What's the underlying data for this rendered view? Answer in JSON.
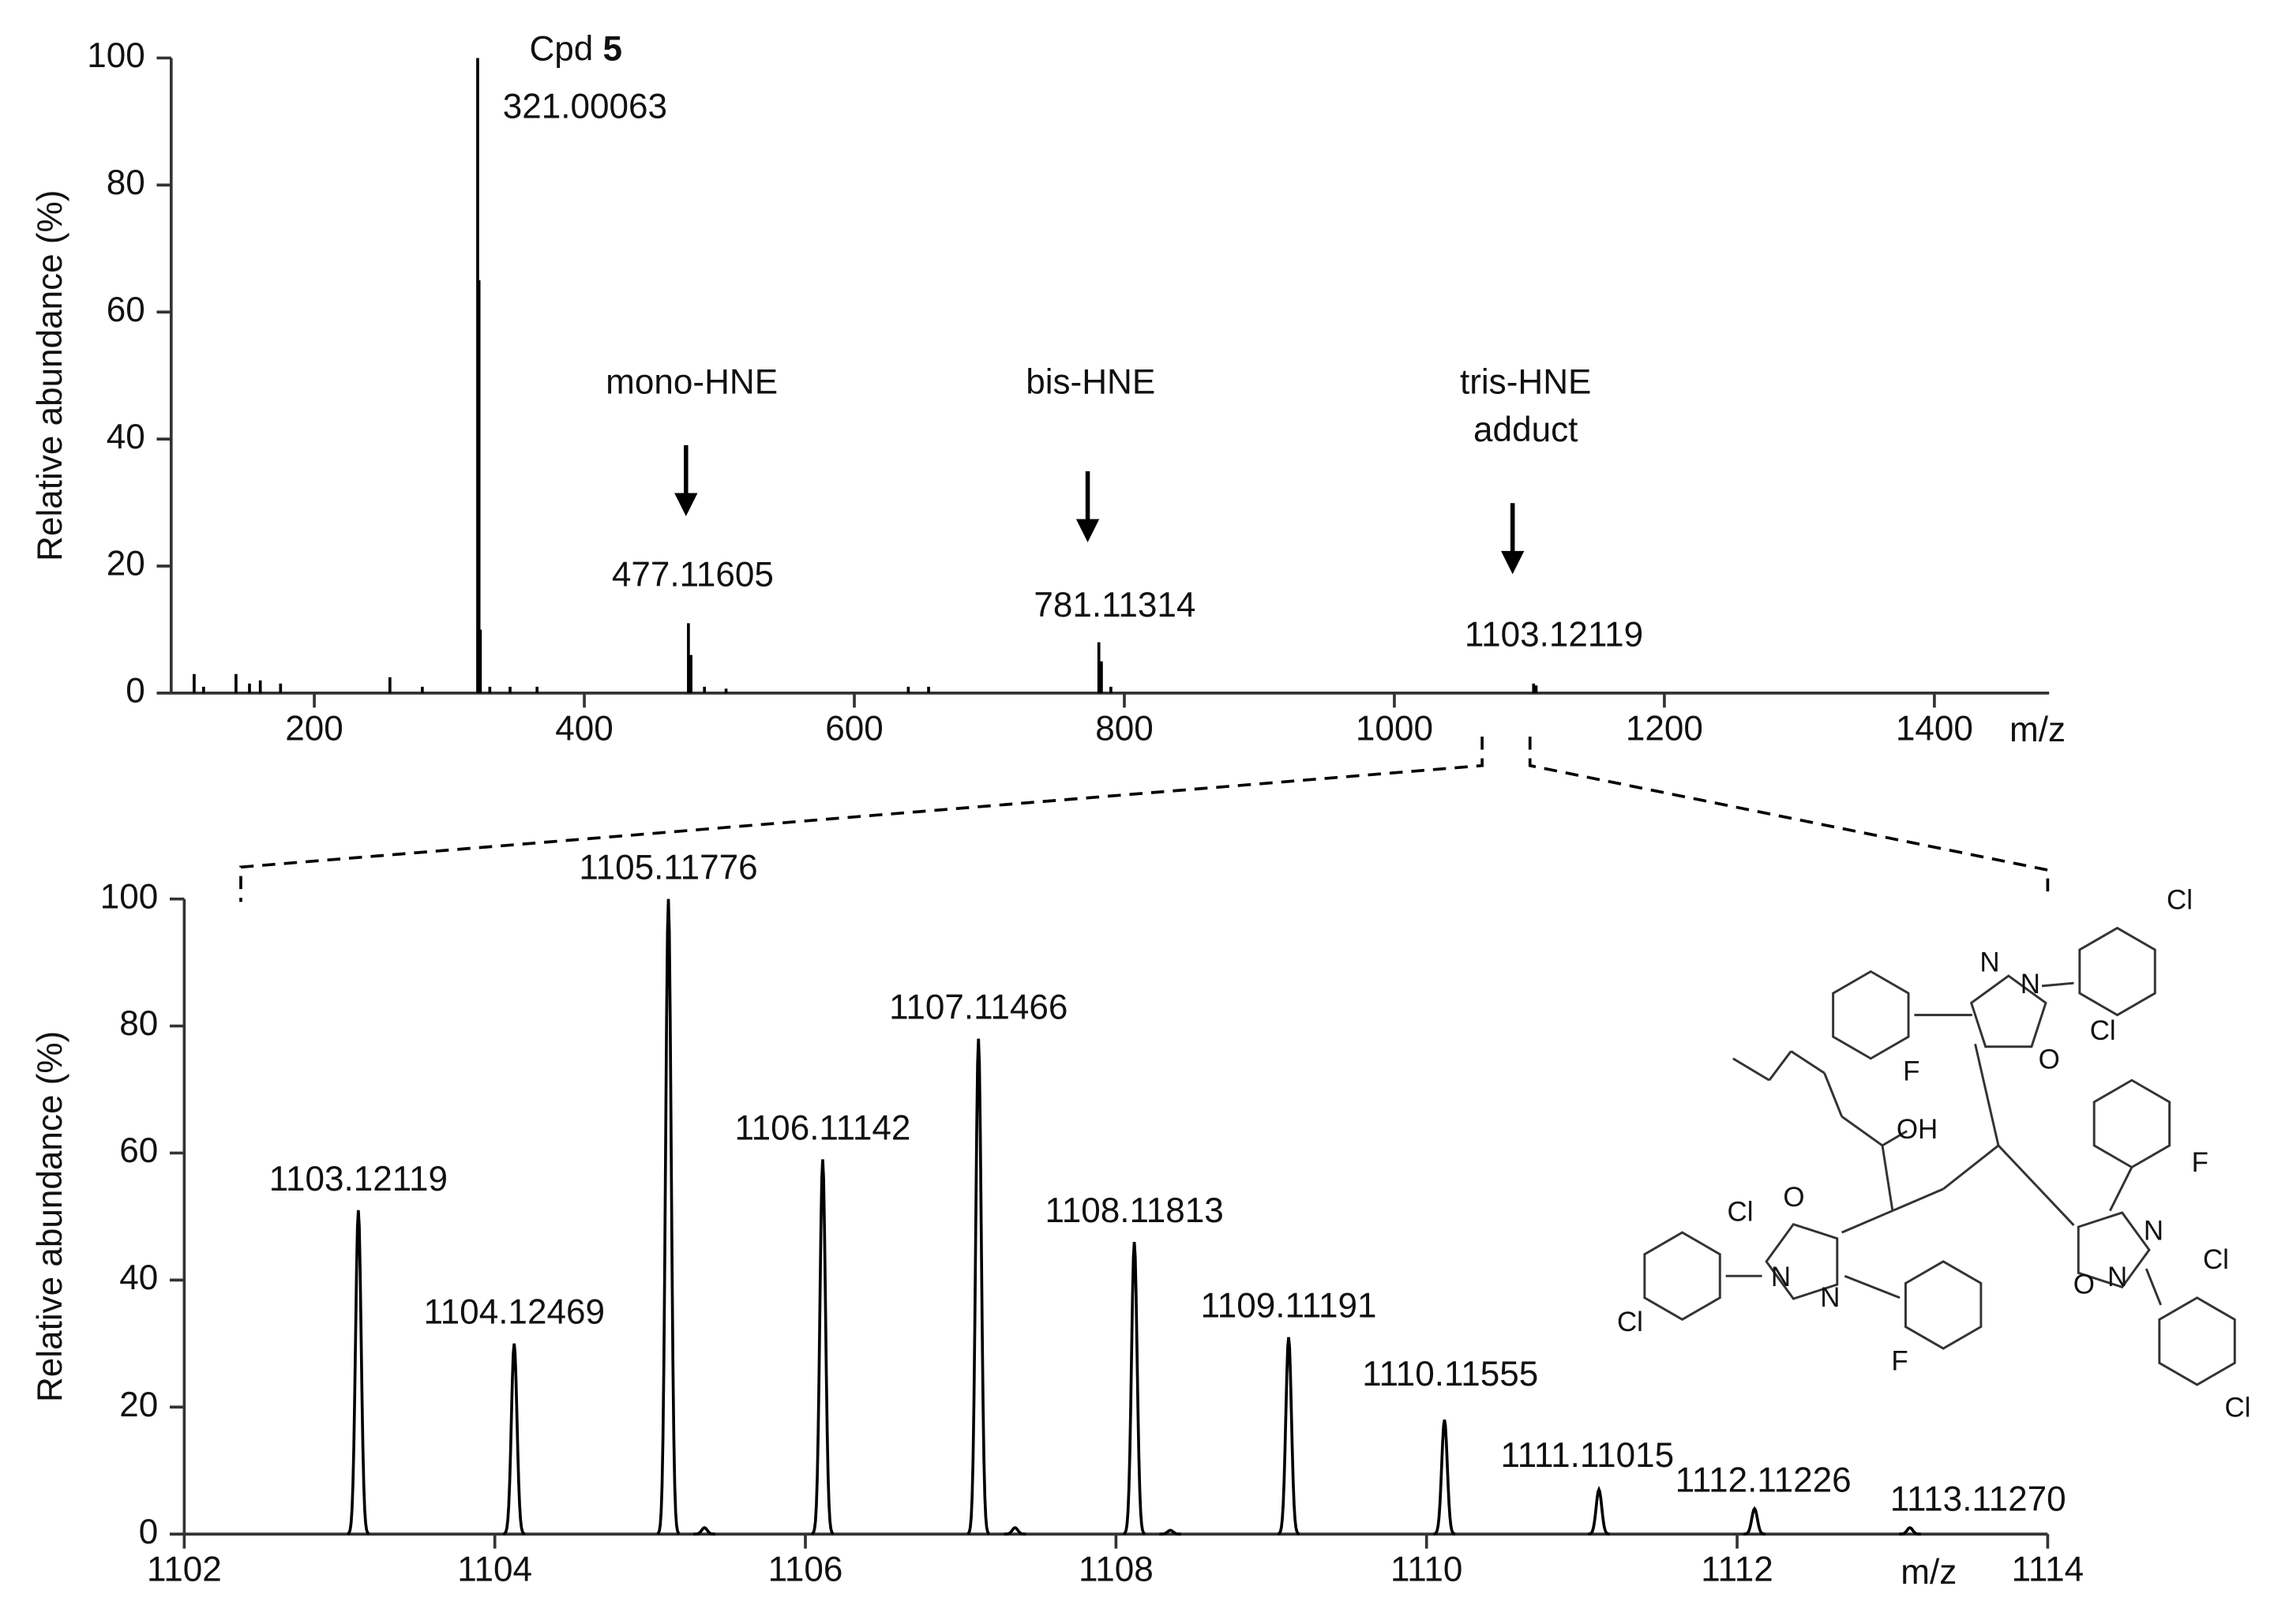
{
  "chart_data": [
    {
      "type": "spectrum",
      "peak_shape": "stick",
      "color": "#000000",
      "ylabel": "Relative abundance (%)",
      "xlabel": "m/z",
      "x": [
        111,
        118,
        142,
        152,
        160,
        175,
        256,
        280,
        321.00063,
        322,
        323,
        330,
        345,
        365,
        477.11605,
        479,
        489,
        505,
        640,
        655,
        781.11314,
        783,
        790,
        1103.12119,
        1105
      ],
      "values": [
        3,
        1,
        3,
        1.5,
        2,
        1.5,
        2.5,
        1,
        100,
        65,
        10,
        1,
        1,
        1,
        11,
        6,
        1,
        0.7,
        1,
        1,
        8,
        5,
        1,
        1.5,
        1.2
      ],
      "x_labels": [
        null,
        null,
        null,
        null,
        null,
        null,
        null,
        null,
        "321.00063",
        null,
        null,
        null,
        null,
        null,
        "477.11605",
        null,
        null,
        null,
        null,
        null,
        "781.11314",
        null,
        null,
        "1103.12119",
        null
      ],
      "xlim": [
        94,
        1485
      ],
      "ylim": [
        0,
        100
      ],
      "xticks": [
        200,
        400,
        600,
        800,
        1000,
        1200,
        1400
      ],
      "yticks": [
        0,
        20,
        40,
        60,
        80,
        100
      ],
      "annotations": {
        "compound": "Cpd",
        "compound_number": "5",
        "mono": "mono-HNE",
        "bis": "bis-HNE",
        "tris": "tris-HNE",
        "tris_2": "adduct"
      }
    },
    {
      "type": "spectrum",
      "peak_shape": "gaussian",
      "color": "#000000",
      "ylabel": "Relative abundance (%)",
      "xlabel": "m/z",
      "x": [
        1103.12119,
        1104.12469,
        1105.11776,
        1105.35,
        1106.11142,
        1107.11466,
        1107.35,
        1108.11813,
        1108.35,
        1109.11191,
        1110.11555,
        1111.11015,
        1112.11226,
        1113.1127
      ],
      "values": [
        51,
        30,
        100,
        1,
        59,
        78,
        1,
        46,
        0.6,
        31,
        18,
        7,
        4,
        1
      ],
      "x_labels": [
        "1103.12119",
        "1104.12469",
        "1105.11776",
        null,
        "1106.11142",
        "1107.11466",
        null,
        "1108.11813",
        null,
        "1109.11191",
        "1110.11555",
        "1111.11015",
        "1112.11226",
        "1113.11270"
      ],
      "xlim": [
        1102,
        1114
      ],
      "ylim": [
        0,
        100
      ],
      "xticks": [
        1102,
        1104,
        1106,
        1108,
        1110,
        1112,
        1114
      ],
      "yticks": [
        0,
        20,
        40,
        60,
        80,
        100
      ],
      "structure_atoms": [
        "Cl",
        "Cl",
        "N",
        "N",
        "O",
        "F",
        "OH",
        "F",
        "N",
        "N",
        "O",
        "Cl",
        "Cl",
        "O",
        "N",
        "N",
        "Cl",
        "Cl",
        "F"
      ]
    }
  ]
}
